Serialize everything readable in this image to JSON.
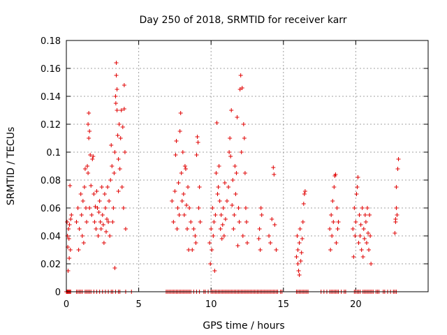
{
  "chart_data": {
    "type": "scatter",
    "title": "Day 250 of 2018, SRMTID for receiver karr",
    "xlabel": "GPS time / hours",
    "ylabel": "SRMTID / TECUs",
    "xlim": [
      0,
      25
    ],
    "ylim": [
      0,
      0.18
    ],
    "x_ticks": [
      0,
      5,
      10,
      15,
      20
    ],
    "x_tick_labels": [
      "0",
      "5",
      "10",
      "15",
      "20"
    ],
    "y_ticks": [
      0,
      0.02,
      0.04,
      0.06,
      0.08,
      0.1,
      0.12,
      0.14,
      0.16,
      0.18
    ],
    "y_tick_labels": [
      "0",
      "0.02",
      "0.04",
      "0.06",
      "0.08",
      "0.1",
      "0.12",
      "0.14",
      "0.16",
      "0.18"
    ],
    "grid": true,
    "marker": "+",
    "color": "#e00000",
    "series": [
      {
        "name": "SRMTID",
        "points": [
          [
            0.05,
            0.05
          ],
          [
            0.1,
            0.032
          ],
          [
            0.15,
            0.045
          ],
          [
            0.2,
            0.024
          ],
          [
            0.25,
            0.076
          ],
          [
            0.3,
            0.052
          ],
          [
            0.12,
            0.015
          ],
          [
            0.08,
            0.04
          ],
          [
            0.18,
            0.038
          ],
          [
            0.22,
            0.048
          ],
          [
            0.28,
            0.03
          ],
          [
            0.35,
            0.055
          ],
          [
            0.7,
            0.05
          ],
          [
            0.8,
            0.06
          ],
          [
            0.85,
            0.03
          ],
          [
            0.9,
            0.045
          ],
          [
            1.0,
            0.07
          ],
          [
            1.05,
            0.055
          ],
          [
            1.1,
            0.04
          ],
          [
            1.15,
            0.065
          ],
          [
            1.2,
            0.035
          ],
          [
            1.25,
            0.075
          ],
          [
            1.3,
            0.088
          ],
          [
            1.35,
            0.06
          ],
          [
            1.4,
            0.05
          ],
          [
            1.45,
            0.09
          ],
          [
            1.5,
            0.085
          ],
          [
            1.5,
            0.12
          ],
          [
            1.55,
            0.128
          ],
          [
            1.55,
            0.11
          ],
          [
            1.6,
            0.115
          ],
          [
            1.6,
            0.06
          ],
          [
            1.65,
            0.098
          ],
          [
            1.7,
            0.076
          ],
          [
            1.75,
            0.055
          ],
          [
            1.8,
            0.095
          ],
          [
            1.85,
            0.097
          ],
          [
            1.9,
            0.07
          ],
          [
            1.95,
            0.05
          ],
          [
            2.0,
            0.061
          ],
          [
            2.05,
            0.045
          ],
          [
            2.1,
            0.072
          ],
          [
            2.15,
            0.06
          ],
          [
            2.2,
            0.04
          ],
          [
            2.25,
            0.057
          ],
          [
            2.3,
            0.065
          ],
          [
            2.35,
            0.05
          ],
          [
            2.4,
            0.045
          ],
          [
            2.45,
            0.075
          ],
          [
            2.5,
            0.055
          ],
          [
            2.55,
            0.048
          ],
          [
            2.6,
            0.035
          ],
          [
            2.65,
            0.07
          ],
          [
            2.7,
            0.06
          ],
          [
            2.75,
            0.043
          ],
          [
            2.8,
            0.052
          ],
          [
            2.85,
            0.075
          ],
          [
            2.9,
            0.05
          ],
          [
            2.95,
            0.065
          ],
          [
            3.0,
            0.04
          ],
          [
            3.05,
            0.08
          ],
          [
            3.1,
            0.105
          ],
          [
            3.15,
            0.09
          ],
          [
            3.2,
            0.05
          ],
          [
            3.25,
            0.06
          ],
          [
            3.3,
            0.085
          ],
          [
            3.35,
            0.1
          ],
          [
            3.4,
            0.14
          ],
          [
            3.45,
            0.164
          ],
          [
            3.45,
            0.155
          ],
          [
            3.5,
            0.145
          ],
          [
            3.5,
            0.13
          ],
          [
            3.55,
            0.112
          ],
          [
            3.6,
            0.095
          ],
          [
            3.6,
            0.072
          ],
          [
            3.65,
            0.12
          ],
          [
            3.7,
            0.088
          ],
          [
            3.75,
            0.11
          ],
          [
            3.8,
            0.13
          ],
          [
            3.85,
            0.075
          ],
          [
            3.9,
            0.118
          ],
          [
            3.95,
            0.06
          ],
          [
            4.0,
            0.148
          ],
          [
            4.05,
            0.1
          ],
          [
            4.1,
            0.045
          ],
          [
            4.0,
            0.131
          ],
          [
            3.35,
            0.017
          ],
          [
            3.42,
            0.135
          ],
          [
            7.3,
            0.065
          ],
          [
            7.4,
            0.05
          ],
          [
            7.5,
            0.072
          ],
          [
            7.55,
            0.098
          ],
          [
            7.6,
            0.108
          ],
          [
            7.65,
            0.045
          ],
          [
            7.7,
            0.06
          ],
          [
            7.75,
            0.078
          ],
          [
            7.8,
            0.055
          ],
          [
            7.85,
            0.115
          ],
          [
            7.9,
            0.128
          ],
          [
            7.95,
            0.085
          ],
          [
            8.0,
            0.065
          ],
          [
            8.05,
            0.1
          ],
          [
            8.1,
            0.07
          ],
          [
            8.15,
            0.055
          ],
          [
            8.2,
            0.09
          ],
          [
            8.25,
            0.088
          ],
          [
            8.3,
            0.062
          ],
          [
            8.35,
            0.045
          ],
          [
            8.4,
            0.075
          ],
          [
            8.45,
            0.03
          ],
          [
            8.5,
            0.06
          ],
          [
            8.6,
            0.05
          ],
          [
            8.7,
            0.03
          ],
          [
            8.8,
            0.045
          ],
          [
            8.9,
            0.04
          ],
          [
            8.95,
            0.035
          ],
          [
            9.0,
            0.098
          ],
          [
            9.05,
            0.111
          ],
          [
            9.1,
            0.107
          ],
          [
            9.15,
            0.06
          ],
          [
            9.2,
            0.075
          ],
          [
            9.25,
            0.05
          ],
          [
            9.9,
            0.035
          ],
          [
            9.95,
            0.02
          ],
          [
            10.0,
            0.045
          ],
          [
            10.05,
            0.03
          ],
          [
            10.1,
            0.06
          ],
          [
            10.15,
            0.04
          ],
          [
            10.2,
            0.05
          ],
          [
            10.25,
            0.015
          ],
          [
            10.3,
            0.055
          ],
          [
            10.35,
            0.085
          ],
          [
            10.4,
            0.121
          ],
          [
            10.45,
            0.07
          ],
          [
            10.5,
            0.075
          ],
          [
            10.55,
            0.09
          ],
          [
            10.6,
            0.065
          ],
          [
            10.65,
            0.045
          ],
          [
            10.7,
            0.055
          ],
          [
            10.75,
            0.038
          ],
          [
            10.8,
            0.048
          ],
          [
            10.85,
            0.06
          ],
          [
            10.9,
            0.04
          ],
          [
            10.95,
            0.078
          ],
          [
            11.0,
            0.052
          ],
          [
            11.1,
            0.065
          ],
          [
            11.2,
            0.075
          ],
          [
            11.25,
            0.1
          ],
          [
            11.3,
            0.11
          ],
          [
            11.35,
            0.097
          ],
          [
            11.4,
            0.13
          ],
          [
            11.45,
            0.062
          ],
          [
            11.5,
            0.08
          ],
          [
            11.55,
            0.045
          ],
          [
            11.6,
            0.055
          ],
          [
            11.65,
            0.09
          ],
          [
            11.7,
            0.07
          ],
          [
            11.75,
            0.085
          ],
          [
            11.8,
            0.125
          ],
          [
            11.85,
            0.033
          ],
          [
            11.9,
            0.06
          ],
          [
            11.95,
            0.05
          ],
          [
            12.0,
            0.145
          ],
          [
            12.05,
            0.155
          ],
          [
            12.1,
            0.1
          ],
          [
            12.15,
            0.146
          ],
          [
            12.2,
            0.04
          ],
          [
            12.25,
            0.12
          ],
          [
            12.3,
            0.11
          ],
          [
            12.35,
            0.085
          ],
          [
            12.4,
            0.06
          ],
          [
            12.45,
            0.05
          ],
          [
            12.5,
            0.035
          ],
          [
            13.3,
            0.038
          ],
          [
            13.35,
            0.045
          ],
          [
            13.4,
            0.03
          ],
          [
            13.45,
            0.06
          ],
          [
            13.5,
            0.055
          ],
          [
            14.0,
            0.04
          ],
          [
            14.1,
            0.035
          ],
          [
            14.2,
            0.052
          ],
          [
            14.3,
            0.089
          ],
          [
            14.35,
            0.084
          ],
          [
            14.4,
            0.048
          ],
          [
            14.5,
            0.03
          ],
          [
            15.9,
            0.025
          ],
          [
            15.95,
            0.04
          ],
          [
            16.0,
            0.03
          ],
          [
            16.05,
            0.015
          ],
          [
            16.1,
            0.035
          ],
          [
            16.15,
            0.045
          ],
          [
            16.2,
            0.022
          ],
          [
            16.25,
            0.028
          ],
          [
            16.3,
            0.038
          ],
          [
            16.35,
            0.05
          ],
          [
            16.4,
            0.063
          ],
          [
            16.45,
            0.07
          ],
          [
            16.5,
            0.072
          ],
          [
            16.0,
            0.02
          ],
          [
            16.1,
            0.012
          ],
          [
            18.2,
            0.045
          ],
          [
            18.25,
            0.03
          ],
          [
            18.3,
            0.055
          ],
          [
            18.35,
            0.04
          ],
          [
            18.4,
            0.065
          ],
          [
            18.45,
            0.05
          ],
          [
            18.5,
            0.075
          ],
          [
            18.55,
            0.083
          ],
          [
            18.6,
            0.084
          ],
          [
            18.65,
            0.035
          ],
          [
            18.7,
            0.06
          ],
          [
            18.75,
            0.045
          ],
          [
            18.8,
            0.05
          ],
          [
            19.8,
            0.045
          ],
          [
            19.85,
            0.025
          ],
          [
            19.9,
            0.06
          ],
          [
            19.95,
            0.04
          ],
          [
            20.0,
            0.05
          ],
          [
            20.05,
            0.07
          ],
          [
            20.1,
            0.075
          ],
          [
            20.15,
            0.082
          ],
          [
            20.2,
            0.035
          ],
          [
            20.25,
            0.055
          ],
          [
            20.3,
            0.04
          ],
          [
            20.35,
            0.048
          ],
          [
            20.4,
            0.03
          ],
          [
            20.45,
            0.06
          ],
          [
            20.5,
            0.025
          ],
          [
            20.55,
            0.045
          ],
          [
            20.6,
            0.038
          ],
          [
            20.65,
            0.055
          ],
          [
            20.7,
            0.05
          ],
          [
            20.75,
            0.035
          ],
          [
            20.8,
            0.06
          ],
          [
            20.85,
            0.042
          ],
          [
            20.9,
            0.03
          ],
          [
            20.95,
            0.055
          ],
          [
            21.0,
            0.04
          ],
          [
            21.05,
            0.02
          ],
          [
            22.7,
            0.042
          ],
          [
            22.75,
            0.05
          ],
          [
            22.8,
            0.06
          ],
          [
            22.85,
            0.055
          ],
          [
            22.9,
            0.088
          ],
          [
            22.95,
            0.095
          ],
          [
            22.8,
            0.075
          ],
          [
            22.75,
            0.052
          ]
        ],
        "zero_points_x": [
          0.0,
          0.05,
          0.1,
          0.15,
          0.2,
          0.25,
          0.3,
          0.7,
          0.8,
          0.9,
          1.0,
          1.1,
          1.3,
          1.4,
          1.5,
          1.6,
          1.7,
          1.9,
          2.1,
          2.3,
          2.5,
          2.7,
          2.9,
          3.1,
          3.2,
          3.4,
          3.6,
          3.7,
          4.1,
          4.5,
          6.9,
          7.0,
          7.1,
          7.2,
          7.3,
          7.4,
          7.5,
          7.6,
          7.7,
          7.8,
          7.9,
          8.0,
          8.1,
          8.2,
          8.3,
          8.4,
          8.5,
          8.6,
          8.8,
          9.0,
          9.2,
          9.5,
          9.6,
          9.8,
          10.0,
          10.1,
          10.2,
          10.3,
          10.4,
          10.5,
          10.6,
          10.7,
          10.8,
          10.9,
          11.0,
          11.1,
          11.2,
          11.3,
          11.4,
          11.5,
          11.6,
          11.7,
          11.8,
          11.9,
          12.0,
          12.1,
          12.2,
          12.3,
          12.4,
          12.5,
          12.6,
          12.7,
          12.8,
          12.9,
          13.0,
          13.1,
          13.2,
          13.3,
          13.4,
          13.5,
          13.6,
          13.7,
          13.8,
          13.9,
          14.0,
          14.1,
          14.2,
          14.3,
          14.4,
          14.5,
          14.6,
          14.8,
          14.9,
          15.9,
          16.0,
          16.1,
          16.2,
          16.3,
          16.4,
          16.5,
          16.6,
          16.7,
          17.6,
          17.8,
          18.0,
          18.2,
          18.3,
          18.4,
          18.5,
          18.6,
          18.7,
          18.8,
          19.0,
          19.2,
          19.3,
          19.9,
          20.0,
          20.1,
          20.2,
          20.3,
          20.5,
          20.6,
          20.7,
          20.8,
          20.9,
          21.0,
          21.1,
          21.2,
          21.4,
          21.5,
          21.6,
          21.9,
          22.0,
          22.2,
          22.4,
          22.6,
          22.7,
          22.8
        ]
      }
    ]
  }
}
